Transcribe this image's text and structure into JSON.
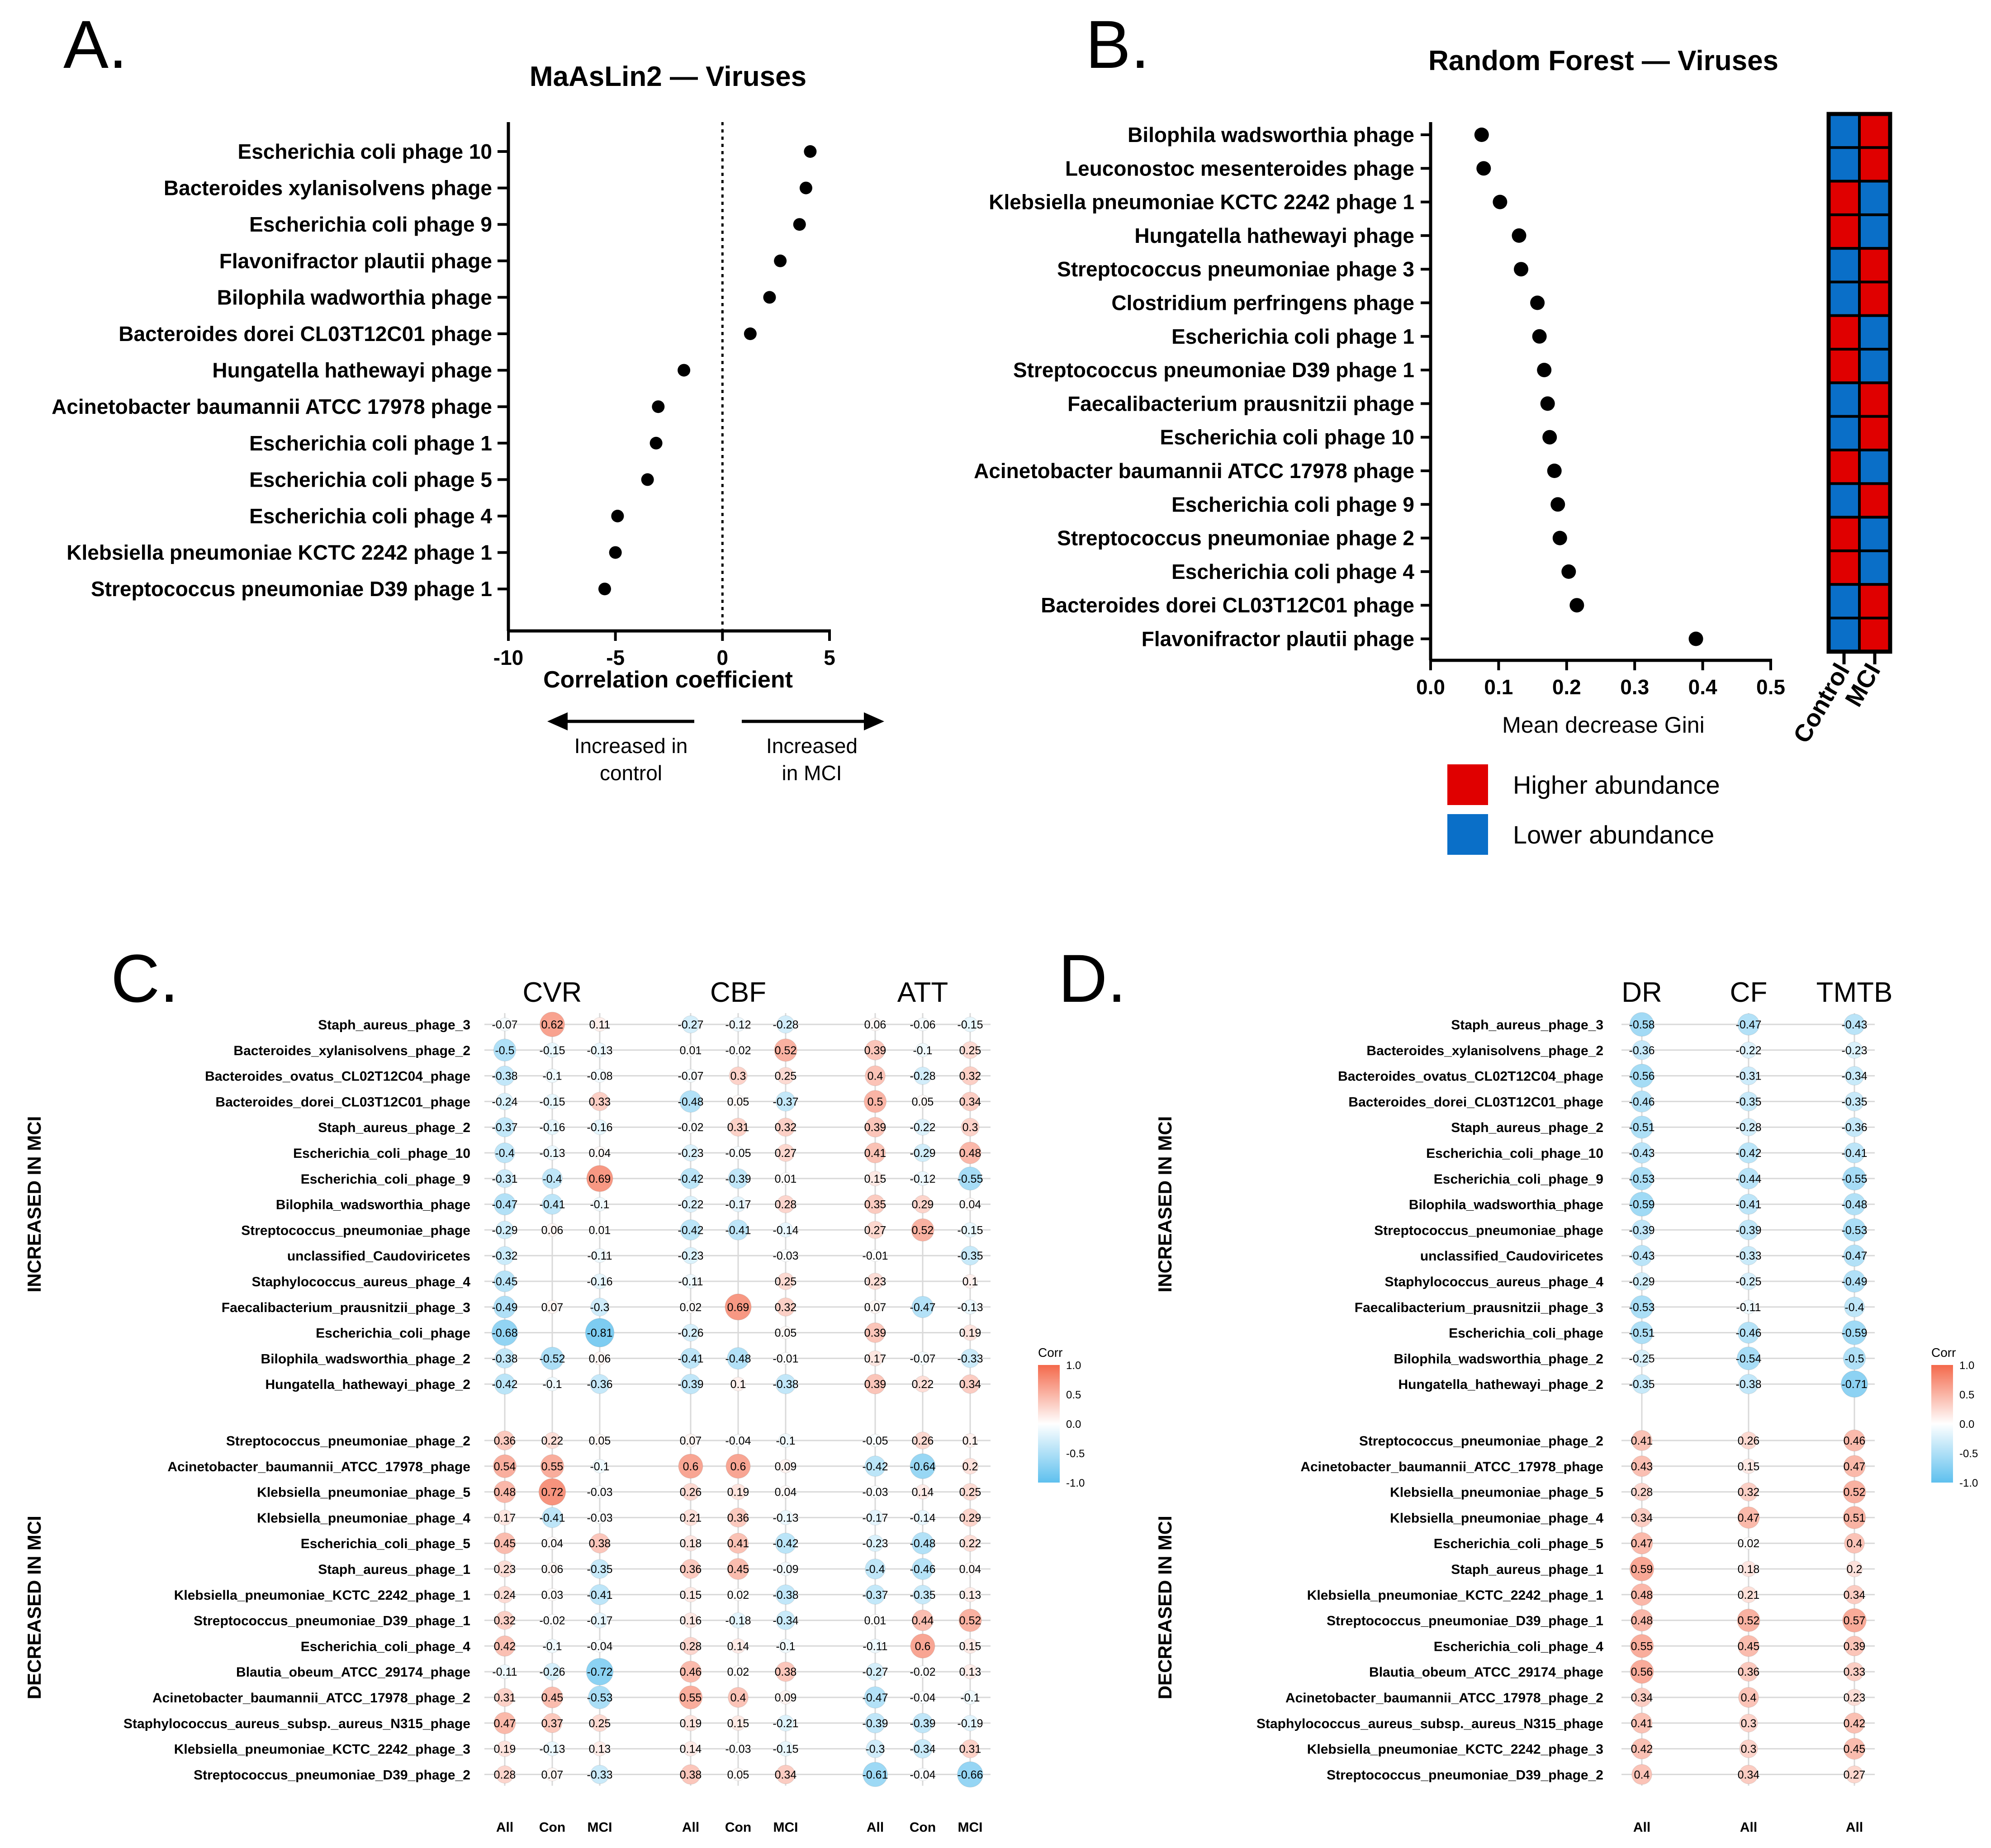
{
  "panels": {
    "A": "A.",
    "B": "B.",
    "C": "C.",
    "D": "D."
  },
  "colors": {
    "red": "#e00000",
    "blue": "#0a6fc8",
    "dot": "#000000",
    "corr_pos": "#f4694b",
    "corr_neg": "#5ec0ee",
    "grid": "#d9d9d9"
  },
  "chart_data": [
    {
      "id": "A",
      "type": "scatter",
      "title": "MaAsLin2 — Viruses",
      "xlabel": "Correlation coefficient",
      "xlim": [
        -10,
        5
      ],
      "xticks": [
        -10,
        -5,
        0,
        5
      ],
      "categories": [
        "Escherichia coli phage 10",
        "Bacteroides xylanisolvens phage",
        "Escherichia coli phage 9",
        "Flavonifractor plautii phage",
        "Bilophila wadworthia phage",
        "Bacteroides dorei CL03T12C01 phage",
        "Hungatella hathewayi phage",
        "Acinetobacter baumannii ATCC 17978 phage",
        "Escherichia coli phage 1",
        "Escherichia coli phage 5",
        "Escherichia coli phage 4",
        "Klebsiella pneumoniae KCTC 2242 phage 1",
        "Streptococcus pneumoniae D39 phage 1"
      ],
      "values": [
        4.1,
        3.9,
        3.6,
        2.7,
        2.2,
        1.3,
        -1.8,
        -3.0,
        -3.1,
        -3.5,
        -4.9,
        -5.0,
        -5.5
      ],
      "arrow_left": [
        "Increased in",
        "control"
      ],
      "arrow_right": [
        "Increased",
        "in MCI"
      ]
    },
    {
      "id": "B",
      "type": "scatter",
      "title": "Random Forest — Viruses",
      "xlabel": "Mean decrease Gini",
      "xlim": [
        0.0,
        0.5
      ],
      "xticks": [
        "0.0",
        "0.1",
        "0.2",
        "0.3",
        "0.4",
        "0.5"
      ],
      "categories": [
        "Bilophila wadsworthia phage",
        "Leuconostoc mesenteroides phage",
        "Klebsiella pneumoniae KCTC 2242 phage 1",
        "Hungatella hathewayi phage",
        "Streptococcus pneumoniae phage 3",
        "Clostridium perfringens phage",
        "Escherichia coli phage 1",
        "Streptococcus pneumoniae D39 phage 1",
        "Faecalibacterium prausnitzii phage",
        "Escherichia coli phage 10",
        "Acinetobacter baumannii ATCC 17978 phage",
        "Escherichia coli phage 9",
        "Streptococcus pneumoniae phage 2",
        "Escherichia coli phage 4",
        "Bacteroides dorei CL03T12C01 phage",
        "Flavonifractor plautii phage"
      ],
      "values": [
        0.075,
        0.078,
        0.102,
        0.13,
        0.133,
        0.157,
        0.16,
        0.167,
        0.172,
        0.175,
        0.182,
        0.187,
        0.19,
        0.203,
        0.215,
        0.39
      ],
      "heatmap": {
        "columns": [
          "Control",
          "MCI"
        ],
        "control_higher": [
          0,
          0,
          1,
          1,
          0,
          0,
          1,
          1,
          0,
          0,
          1,
          0,
          1,
          1,
          0,
          0
        ]
      },
      "legend": [
        "Higher abundance",
        "Lower abundance"
      ]
    },
    {
      "id": "C",
      "type": "heatmap",
      "groups": [
        "CVR",
        "CBF",
        "ATT"
      ],
      "columns": [
        "All",
        "Con",
        "MCI",
        "All",
        "Con",
        "MCI",
        "All",
        "Con",
        "MCI"
      ],
      "section_labels": [
        "INCREASED IN MCI",
        "DECREASED IN MCI"
      ],
      "rows_increased": [
        "Staph_aureus_phage_3",
        "Bacteroides_xylanisolvens_phage_2",
        "Bacteroides_ovatus_CL02T12C04_phage",
        "Bacteroides_dorei_CL03T12C01_phage",
        "Staph_aureus_phage_2",
        "Escherichia_coli_phage_10",
        "Escherichia_coli_phage_9",
        "Bilophila_wadsworthia_phage",
        "Streptococcus_pneumoniae_phage",
        "unclassified_Caudoviricetes",
        "Staphylococcus_aureus_phage_4",
        "Faecalibacterium_prausnitzii_phage_3",
        "Escherichia_coli_phage",
        "Bilophila_wadsworthia_phage_2",
        "Hungatella_hathewayi_phage_2"
      ],
      "values_increased": [
        [
          -0.07,
          0.62,
          0.11,
          -0.27,
          -0.12,
          -0.28,
          0.06,
          -0.06,
          -0.15
        ],
        [
          -0.5,
          -0.15,
          -0.13,
          0.01,
          -0.02,
          0.52,
          0.39,
          -0.1,
          0.25
        ],
        [
          -0.38,
          -0.1,
          -0.08,
          -0.07,
          0.3,
          0.25,
          0.4,
          -0.28,
          0.32
        ],
        [
          -0.24,
          -0.15,
          0.33,
          -0.48,
          0.05,
          -0.37,
          0.5,
          0.05,
          0.34
        ],
        [
          -0.37,
          -0.16,
          -0.16,
          -0.02,
          0.31,
          0.32,
          0.39,
          -0.22,
          0.3
        ],
        [
          -0.4,
          -0.13,
          0.04,
          -0.23,
          -0.05,
          0.27,
          0.41,
          -0.29,
          0.48
        ],
        [
          -0.31,
          -0.4,
          0.69,
          -0.42,
          -0.39,
          0.01,
          0.15,
          -0.12,
          -0.55
        ],
        [
          -0.47,
          -0.41,
          -0.1,
          -0.22,
          -0.17,
          0.28,
          0.35,
          0.29,
          0.04
        ],
        [
          -0.29,
          0.06,
          0.01,
          -0.42,
          -0.41,
          -0.14,
          0.27,
          0.52,
          -0.15
        ],
        [
          -0.32,
          null,
          -0.11,
          -0.23,
          null,
          -0.03,
          -0.01,
          null,
          -0.35
        ],
        [
          -0.45,
          null,
          -0.16,
          -0.11,
          null,
          0.25,
          0.23,
          null,
          0.1
        ],
        [
          -0.49,
          0.07,
          -0.3,
          0.02,
          0.69,
          0.32,
          0.07,
          -0.47,
          -0.13
        ],
        [
          -0.68,
          null,
          -0.81,
          -0.26,
          null,
          0.05,
          0.39,
          null,
          0.19
        ],
        [
          -0.38,
          -0.52,
          0.06,
          -0.41,
          -0.48,
          -0.01,
          0.17,
          -0.07,
          -0.33
        ],
        [
          -0.42,
          -0.1,
          -0.36,
          -0.39,
          0.1,
          -0.38,
          0.39,
          0.22,
          0.34
        ]
      ],
      "rows_decreased": [
        "Streptococcus_pneumoniae_phage_2",
        "Acinetobacter_baumannii_ATCC_17978_phage",
        "Klebsiella_pneumoniae_phage_5",
        "Klebsiella_pneumoniae_phage_4",
        "Escherichia_coli_phage_5",
        "Staph_aureus_phage_1",
        "Klebsiella_pneumoniae_KCTC_2242_phage_1",
        "Streptococcus_pneumoniae_D39_phage_1",
        "Escherichia_coli_phage_4",
        "Blautia_obeum_ATCC_29174_phage",
        "Acinetobacter_baumannii_ATCC_17978_phage_2",
        "Staphylococcus_aureus_subsp._aureus_N315_phage",
        "Klebsiella_pneumoniae_KCTC_2242_phage_3",
        "Streptococcus_pneumoniae_D39_phage_2"
      ],
      "values_decreased": [
        [
          0.36,
          0.22,
          0.05,
          0.07,
          -0.04,
          -0.1,
          -0.05,
          0.26,
          0.1
        ],
        [
          0.54,
          0.55,
          -0.1,
          0.6,
          0.6,
          0.09,
          -0.42,
          -0.64,
          0.2
        ],
        [
          0.48,
          0.72,
          -0.03,
          0.26,
          0.19,
          0.04,
          -0.03,
          0.14,
          0.25
        ],
        [
          0.17,
          -0.41,
          -0.03,
          0.21,
          0.36,
          -0.13,
          -0.17,
          -0.14,
          0.29
        ],
        [
          0.45,
          0.04,
          0.38,
          0.18,
          0.41,
          -0.42,
          -0.23,
          -0.48,
          0.22
        ],
        [
          0.23,
          0.06,
          -0.35,
          0.36,
          0.45,
          -0.09,
          -0.4,
          -0.46,
          0.04
        ],
        [
          0.24,
          0.03,
          -0.41,
          0.15,
          0.02,
          -0.38,
          -0.37,
          -0.35,
          0.13
        ],
        [
          0.32,
          -0.02,
          -0.17,
          0.16,
          -0.18,
          -0.34,
          0.01,
          0.44,
          0.52
        ],
        [
          0.42,
          -0.1,
          -0.04,
          0.28,
          0.14,
          -0.1,
          -0.11,
          0.6,
          0.15
        ],
        [
          -0.11,
          -0.26,
          -0.72,
          0.46,
          0.02,
          0.38,
          -0.27,
          -0.02,
          0.13
        ],
        [
          0.31,
          0.45,
          -0.53,
          0.55,
          0.4,
          0.09,
          -0.47,
          -0.04,
          -0.1
        ],
        [
          0.47,
          0.37,
          0.25,
          0.19,
          0.15,
          -0.21,
          -0.39,
          -0.39,
          -0.19
        ],
        [
          0.19,
          -0.13,
          0.13,
          0.14,
          -0.03,
          -0.15,
          -0.3,
          -0.34,
          0.31
        ],
        [
          0.28,
          0.07,
          -0.33,
          0.38,
          0.05,
          0.34,
          -0.61,
          -0.04,
          -0.66
        ]
      ],
      "legend_title": "Corr",
      "legend_ticks": [
        "1.0",
        "0.5",
        "0.0",
        "-0.5",
        "-1.0"
      ]
    },
    {
      "id": "D",
      "type": "heatmap",
      "groups": [
        "DR",
        "CF",
        "TMTB"
      ],
      "columns": [
        "All",
        "All",
        "All"
      ],
      "section_labels": [
        "INCREASED IN MCI",
        "DECREASED IN MCI"
      ],
      "rows_increased": [
        "Staph_aureus_phage_3",
        "Bacteroides_xylanisolvens_phage_2",
        "Bacteroides_ovatus_CL02T12C04_phage",
        "Bacteroides_dorei_CL03T12C01_phage",
        "Staph_aureus_phage_2",
        "Escherichia_coli_phage_10",
        "Escherichia_coli_phage_9",
        "Bilophila_wadsworthia_phage",
        "Streptococcus_pneumoniae_phage",
        "unclassified_Caudoviricetes",
        "Staphylococcus_aureus_phage_4",
        "Faecalibacterium_prausnitzii_phage_3",
        "Escherichia_coli_phage",
        "Bilophila_wadsworthia_phage_2",
        "Hungatella_hathewayi_phage_2"
      ],
      "values_increased": [
        [
          -0.58,
          -0.47,
          -0.43
        ],
        [
          -0.36,
          -0.22,
          -0.23
        ],
        [
          -0.56,
          -0.31,
          -0.34
        ],
        [
          -0.46,
          -0.35,
          -0.35
        ],
        [
          -0.51,
          -0.28,
          -0.36
        ],
        [
          -0.43,
          -0.42,
          -0.41
        ],
        [
          -0.53,
          -0.44,
          -0.55
        ],
        [
          -0.59,
          -0.41,
          -0.48
        ],
        [
          -0.39,
          -0.39,
          -0.53
        ],
        [
          -0.43,
          -0.33,
          -0.47
        ],
        [
          -0.29,
          -0.25,
          -0.49
        ],
        [
          -0.53,
          -0.11,
          -0.4
        ],
        [
          -0.51,
          -0.46,
          -0.59
        ],
        [
          -0.25,
          -0.54,
          -0.5
        ],
        [
          -0.35,
          -0.38,
          -0.71
        ]
      ],
      "rows_decreased": [
        "Streptococcus_pneumoniae_phage_2",
        "Acinetobacter_baumannii_ATCC_17978_phage",
        "Klebsiella_pneumoniae_phage_5",
        "Klebsiella_pneumoniae_phage_4",
        "Escherichia_coli_phage_5",
        "Staph_aureus_phage_1",
        "Klebsiella_pneumoniae_KCTC_2242_phage_1",
        "Streptococcus_pneumoniae_D39_phage_1",
        "Escherichia_coli_phage_4",
        "Blautia_obeum_ATCC_29174_phage",
        "Acinetobacter_baumannii_ATCC_17978_phage_2",
        "Staphylococcus_aureus_subsp._aureus_N315_phage",
        "Klebsiella_pneumoniae_KCTC_2242_phage_3",
        "Streptococcus_pneumoniae_D39_phage_2"
      ],
      "values_decreased": [
        [
          0.41,
          0.26,
          0.46
        ],
        [
          0.43,
          0.15,
          0.47
        ],
        [
          0.28,
          0.32,
          0.52
        ],
        [
          0.34,
          0.47,
          0.51
        ],
        [
          0.47,
          0.02,
          0.4
        ],
        [
          0.59,
          0.18,
          0.2
        ],
        [
          0.48,
          0.21,
          0.34
        ],
        [
          0.48,
          0.52,
          0.57
        ],
        [
          0.55,
          0.45,
          0.39
        ],
        [
          0.56,
          0.36,
          0.33
        ],
        [
          0.34,
          0.4,
          0.23
        ],
        [
          0.41,
          0.3,
          0.42
        ],
        [
          0.42,
          0.3,
          0.45
        ],
        [
          0.4,
          0.34,
          0.27
        ]
      ],
      "legend_title": "Corr",
      "legend_ticks": [
        "1.0",
        "0.5",
        "0.0",
        "-0.5",
        "-1.0"
      ]
    }
  ]
}
